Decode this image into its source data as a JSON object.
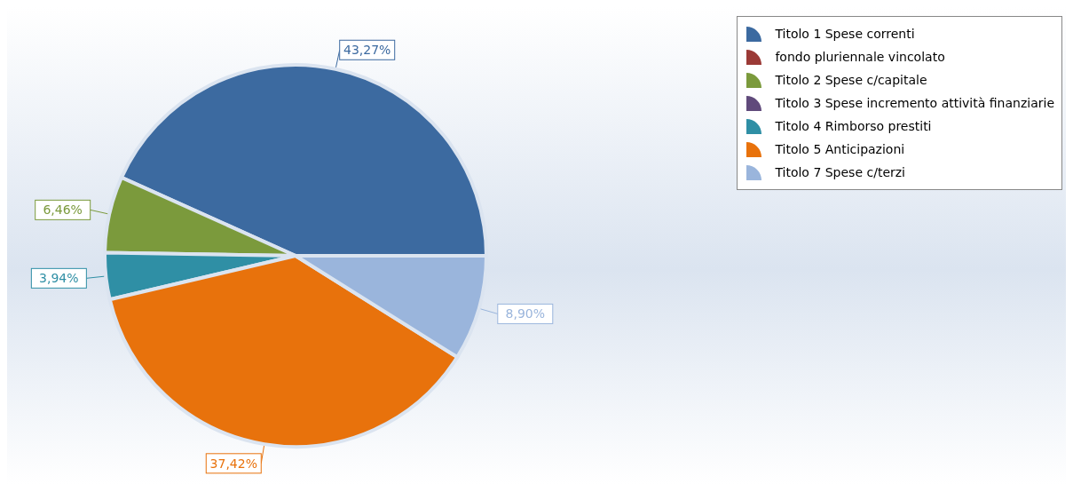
{
  "chart_data": {
    "type": "pie",
    "categories": [
      "Titolo 1 Spese correnti",
      "fondo pluriennale vincolato",
      "Titolo 2 Spese c/capitale",
      "Titolo 3 Spese incremento attività finanziarie",
      "Titolo 4 Rimborso prestiti",
      "Titolo 5 Anticipazioni",
      "Titolo 7 Spese c/terzi"
    ],
    "values": [
      43.27,
      0,
      6.46,
      0,
      3.94,
      37.42,
      8.9
    ],
    "colors": [
      "#3c6aa0",
      "#9b3a36",
      "#7b9a3c",
      "#604a7b",
      "#2f8fa5",
      "#e8720c",
      "#9ab5dc"
    ],
    "value_labels": [
      "43,27%",
      null,
      "6,46%",
      null,
      "3,94%",
      "37,42%",
      "8,90%"
    ],
    "legend": "top right"
  }
}
